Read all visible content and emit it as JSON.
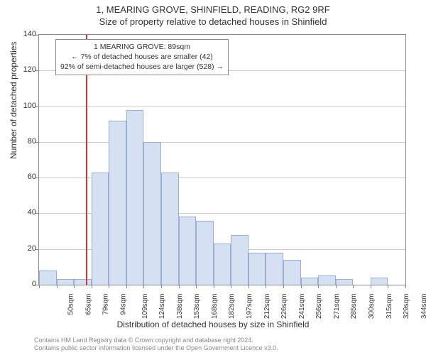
{
  "titles": {
    "line1": "1, MEARING GROVE, SHINFIELD, READING, RG2 9RF",
    "line2": "Size of property relative to detached houses in Shinfield"
  },
  "axes": {
    "ylabel": "Number of detached properties",
    "xlabel": "Distribution of detached houses by size in Shinfield",
    "ylim": [
      0,
      140
    ],
    "ytick_step": 20,
    "yticks": [
      0,
      20,
      40,
      60,
      80,
      100,
      120,
      140
    ],
    "grid_color": "#cccccc",
    "axis_color": "#888888",
    "tick_fontsize": 11,
    "label_fontsize": 12,
    "background_color": "#ffffff"
  },
  "histogram": {
    "type": "histogram",
    "bar_fill": "#d5e0f2",
    "bar_stroke": "#9aaed0",
    "bar_stroke_width": 1,
    "bins": [
      {
        "label": "50sqm",
        "value": 8
      },
      {
        "label": "65sqm",
        "value": 3
      },
      {
        "label": "79sqm",
        "value": 3
      },
      {
        "label": "94sqm",
        "value": 63
      },
      {
        "label": "109sqm",
        "value": 92
      },
      {
        "label": "124sqm",
        "value": 98
      },
      {
        "label": "138sqm",
        "value": 80
      },
      {
        "label": "153sqm",
        "value": 63
      },
      {
        "label": "168sqm",
        "value": 38
      },
      {
        "label": "182sqm",
        "value": 36
      },
      {
        "label": "197sqm",
        "value": 23
      },
      {
        "label": "212sqm",
        "value": 28
      },
      {
        "label": "226sqm",
        "value": 18
      },
      {
        "label": "241sqm",
        "value": 18
      },
      {
        "label": "256sqm",
        "value": 14
      },
      {
        "label": "271sqm",
        "value": 4
      },
      {
        "label": "285sqm",
        "value": 5
      },
      {
        "label": "300sqm",
        "value": 3
      },
      {
        "label": "315sqm",
        "value": 0
      },
      {
        "label": "329sqm",
        "value": 4
      },
      {
        "label": "344sqm",
        "value": 0
      }
    ]
  },
  "marker": {
    "bin_position": 2.7,
    "color": "#e03030",
    "width": 2
  },
  "annotation": {
    "line1": "1 MEARING GROVE: 89sqm",
    "line2": "← 7% of detached houses are smaller (42)",
    "line3": "92% of semi-detached houses are larger (528) →",
    "border_color": "#888888",
    "bg_color": "#ffffff",
    "fontsize": 10.5
  },
  "footer": {
    "line1": "Contains HM Land Registry data © Crown copyright and database right 2024.",
    "line2": "Contains public sector information licensed under the Open Government Licence v3.0.",
    "color": "#888888",
    "fontsize": 9
  }
}
